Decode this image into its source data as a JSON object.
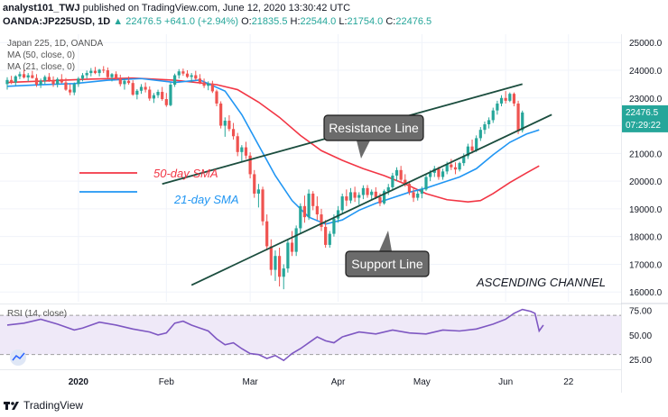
{
  "header": {
    "author": "analyst101_TWJ",
    "published": "published on TradingView.com, June 12, 2020 13:30:42 UTC",
    "symbol": "OANDA:JP225USD, 1D",
    "last": "22476.5",
    "change": "+641.0 (+2.94%)",
    "open_label": "O:",
    "open": "21835.5",
    "high_label": "H:",
    "high": "22544.0",
    "low_label": "L:",
    "low": "21754.0",
    "close_label": "C:",
    "close": "22476.5"
  },
  "legend": {
    "title": "Japan 225, 1D, OANDA",
    "ma1": "MA (50, close, 0)",
    "ma2": "MA (21, close, 0)"
  },
  "colors": {
    "up": "#26a69a",
    "down": "#ef5350",
    "sma50": "#f23645",
    "sma21": "#2196f3",
    "rsi": "#7e57c2",
    "rsi_band": "#e1d7f3",
    "channel": "#1b4d3e",
    "price_badge": "#26a69a"
  },
  "annotations": {
    "sma50_label": "50-day SMA",
    "sma21_label": "21-day SMA",
    "resistance": "Resistance Line",
    "support": "Support Line",
    "channel": "ASCENDING CHANNEL"
  },
  "price_badge": {
    "price": "22476.5",
    "countdown": "07:29:22"
  },
  "rsi_label": "RSI (14, close)",
  "brand": "TradingView",
  "chart_data": {
    "type": "candlestick",
    "price_axis": {
      "ticks": [
        16000,
        17000,
        18000,
        19000,
        20000,
        21000,
        22000,
        23000,
        24000,
        25000
      ],
      "labels": [
        "16000.0",
        "17000.0",
        "18000.0",
        "19000.0",
        "20000.0",
        "21000.0",
        "22000.0",
        "23000.0",
        "24000.0",
        "25000.0"
      ],
      "range": [
        15650,
        25300
      ]
    },
    "rsi_axis": {
      "ticks": [
        25,
        50,
        75
      ],
      "labels": [
        "25.00",
        "50.00",
        "75.00"
      ],
      "range": [
        15,
        82
      ],
      "band": [
        30,
        70
      ]
    },
    "time_axis": {
      "labels": [
        "2020",
        "Feb",
        "Mar",
        "Apr",
        "May",
        "Jun",
        "22"
      ],
      "label_index": [
        17,
        38,
        58,
        79,
        99,
        119,
        134
      ]
    },
    "candles": [
      [
        23500,
        23750,
        23300,
        23650
      ],
      [
        23650,
        23800,
        23500,
        23560
      ],
      [
        23560,
        23820,
        23450,
        23780
      ],
      [
        23780,
        23950,
        23680,
        23860
      ],
      [
        23860,
        24020,
        23700,
        23740
      ],
      [
        23740,
        23900,
        23600,
        23820
      ],
      [
        23820,
        23980,
        23700,
        23720
      ],
      [
        23720,
        23860,
        23400,
        23480
      ],
      [
        23480,
        23700,
        23360,
        23620
      ],
      [
        23620,
        23820,
        23500,
        23760
      ],
      [
        23760,
        23900,
        23580,
        23640
      ],
      [
        23640,
        23780,
        23400,
        23500
      ],
      [
        23500,
        23740,
        23380,
        23680
      ],
      [
        23680,
        23860,
        23520,
        23560
      ],
      [
        23560,
        23720,
        23260,
        23300
      ],
      [
        23300,
        23500,
        23100,
        23200
      ],
      [
        23200,
        23560,
        23100,
        23500
      ],
      [
        23500,
        23760,
        23400,
        23700
      ],
      [
        23700,
        23900,
        23600,
        23820
      ],
      [
        23820,
        23990,
        23700,
        23900
      ],
      [
        23900,
        24080,
        23780,
        23980
      ],
      [
        23980,
        24120,
        23860,
        23900
      ],
      [
        23900,
        24050,
        23780,
        24020
      ],
      [
        24020,
        24150,
        23900,
        24000
      ],
      [
        24000,
        24100,
        23700,
        23750
      ],
      [
        23750,
        23900,
        23600,
        23860
      ],
      [
        23860,
        23960,
        23640,
        23700
      ],
      [
        23700,
        23840,
        23420,
        23500
      ],
      [
        23500,
        23700,
        23300,
        23620
      ],
      [
        23620,
        23780,
        23480,
        23540
      ],
      [
        23540,
        23640,
        23080,
        23120
      ],
      [
        23120,
        23320,
        22950,
        23260
      ],
      [
        23260,
        23500,
        23150,
        23400
      ],
      [
        23400,
        23560,
        23200,
        23300
      ],
      [
        23300,
        23420,
        22900,
        22980
      ],
      [
        22980,
        23180,
        22820,
        23100
      ],
      [
        23100,
        23300,
        23000,
        23220
      ],
      [
        23220,
        23400,
        22900,
        22960
      ],
      [
        22960,
        23180,
        22680,
        22740
      ],
      [
        22740,
        23560,
        22700,
        23480
      ],
      [
        23480,
        23880,
        23400,
        23820
      ],
      [
        23820,
        24040,
        23700,
        23960
      ],
      [
        23960,
        24060,
        23800,
        23880
      ],
      [
        23880,
        24000,
        23720,
        23760
      ],
      [
        23760,
        23900,
        23560,
        23820
      ],
      [
        23820,
        23980,
        23640,
        23700
      ],
      [
        23700,
        23860,
        23500,
        23560
      ],
      [
        23560,
        23700,
        23360,
        23440
      ],
      [
        23440,
        23600,
        23280,
        23520
      ],
      [
        23520,
        23620,
        23180,
        23240
      ],
      [
        23240,
        23300,
        22700,
        22800
      ],
      [
        22800,
        22880,
        21900,
        22000
      ],
      [
        22000,
        22300,
        21600,
        22180
      ],
      [
        22180,
        22380,
        21800,
        21880
      ],
      [
        21880,
        22100,
        21500,
        21620
      ],
      [
        21620,
        21740,
        20900,
        21050
      ],
      [
        21050,
        21300,
        20700,
        21220
      ],
      [
        21220,
        21420,
        20800,
        20920
      ],
      [
        20920,
        21040,
        20100,
        20250
      ],
      [
        20250,
        20400,
        19400,
        19550
      ],
      [
        19550,
        19900,
        19050,
        19700
      ],
      [
        19700,
        19800,
        18400,
        18550
      ],
      [
        18550,
        18800,
        17500,
        17650
      ],
      [
        17650,
        17900,
        16600,
        16800
      ],
      [
        16800,
        17500,
        16400,
        17300
      ],
      [
        17300,
        17600,
        16200,
        16550
      ],
      [
        16550,
        17000,
        16100,
        16850
      ],
      [
        16850,
        17900,
        16700,
        17780
      ],
      [
        17780,
        18200,
        17300,
        17450
      ],
      [
        17450,
        18400,
        17300,
        18300
      ],
      [
        18300,
        19200,
        18100,
        19100
      ],
      [
        19100,
        19480,
        18500,
        18700
      ],
      [
        18700,
        19700,
        18600,
        19550
      ],
      [
        19550,
        19640,
        18950,
        19100
      ],
      [
        19100,
        19450,
        18600,
        18800
      ],
      [
        18800,
        19000,
        18200,
        18350
      ],
      [
        18350,
        18600,
        17600,
        17700
      ],
      [
        17700,
        18200,
        17600,
        18100
      ],
      [
        18100,
        18800,
        18000,
        18650
      ],
      [
        18650,
        19100,
        18500,
        18950
      ],
      [
        18950,
        19550,
        18850,
        19450
      ],
      [
        19450,
        19700,
        19100,
        19300
      ],
      [
        19300,
        19750,
        19200,
        19600
      ],
      [
        19600,
        19800,
        19250,
        19400
      ],
      [
        19400,
        19600,
        19150,
        19500
      ],
      [
        19500,
        19850,
        19350,
        19750
      ],
      [
        19750,
        19860,
        19400,
        19500
      ],
      [
        19500,
        19700,
        19300,
        19620
      ],
      [
        19620,
        19780,
        19350,
        19420
      ],
      [
        19420,
        19560,
        19100,
        19200
      ],
      [
        19200,
        19700,
        19150,
        19640
      ],
      [
        19640,
        19900,
        19500,
        19780
      ],
      [
        19780,
        20300,
        19700,
        20200
      ],
      [
        20200,
        20500,
        20000,
        20400
      ],
      [
        20400,
        20550,
        19950,
        20050
      ],
      [
        20050,
        20250,
        19800,
        19900
      ],
      [
        19900,
        20000,
        19500,
        19600
      ],
      [
        19600,
        19750,
        19250,
        19400
      ],
      [
        19400,
        19650,
        19300,
        19550
      ],
      [
        19550,
        19800,
        19380,
        19700
      ],
      [
        19700,
        20250,
        19650,
        20150
      ],
      [
        20150,
        20400,
        20000,
        20300
      ],
      [
        20300,
        20550,
        20150,
        20450
      ],
      [
        20450,
        20520,
        20050,
        20150
      ],
      [
        20150,
        20450,
        20050,
        20350
      ],
      [
        20350,
        20700,
        20250,
        20600
      ],
      [
        20600,
        20800,
        20400,
        20500
      ],
      [
        20500,
        20680,
        20250,
        20420
      ],
      [
        20420,
        20700,
        20350,
        20650
      ],
      [
        20650,
        21000,
        20550,
        20900
      ],
      [
        20900,
        21350,
        20800,
        21250
      ],
      [
        21250,
        21500,
        21000,
        21100
      ],
      [
        21100,
        21650,
        21050,
        21550
      ],
      [
        21550,
        21950,
        21450,
        21850
      ],
      [
        21850,
        22150,
        21700,
        22050
      ],
      [
        22050,
        22300,
        21900,
        22200
      ],
      [
        22200,
        22650,
        22100,
        22550
      ],
      [
        22550,
        22900,
        22400,
        22800
      ],
      [
        22800,
        23100,
        22700,
        23000
      ],
      [
        23000,
        23250,
        22800,
        22900
      ],
      [
        22900,
        23200,
        22850,
        23150
      ],
      [
        23150,
        23200,
        22700,
        22800
      ],
      [
        22800,
        22900,
        21700,
        21800
      ],
      [
        21835.5,
        22544,
        21754,
        22476.5
      ]
    ],
    "sma50": [
      [
        0,
        23560
      ],
      [
        10,
        23620
      ],
      [
        20,
        23680
      ],
      [
        30,
        23720
      ],
      [
        40,
        23640
      ],
      [
        50,
        23480
      ],
      [
        55,
        23300
      ],
      [
        60,
        22850
      ],
      [
        65,
        22300
      ],
      [
        70,
        21650
      ],
      [
        75,
        21100
      ],
      [
        80,
        20750
      ],
      [
        85,
        20450
      ],
      [
        90,
        20200
      ],
      [
        95,
        19900
      ],
      [
        100,
        19550
      ],
      [
        105,
        19330
      ],
      [
        110,
        19250
      ],
      [
        113,
        19300
      ],
      [
        116,
        19550
      ],
      [
        120,
        19950
      ],
      [
        124,
        20300
      ],
      [
        127,
        20550
      ]
    ],
    "sma21": [
      [
        0,
        23420
      ],
      [
        8,
        23480
      ],
      [
        16,
        23520
      ],
      [
        24,
        23640
      ],
      [
        32,
        23700
      ],
      [
        40,
        23560
      ],
      [
        46,
        23650
      ],
      [
        52,
        23250
      ],
      [
        56,
        22400
      ],
      [
        60,
        21300
      ],
      [
        64,
        20200
      ],
      [
        68,
        19300
      ],
      [
        72,
        18700
      ],
      [
        76,
        18450
      ],
      [
        80,
        18600
      ],
      [
        84,
        18950
      ],
      [
        88,
        19200
      ],
      [
        92,
        19400
      ],
      [
        96,
        19600
      ],
      [
        100,
        19750
      ],
      [
        104,
        19950
      ],
      [
        108,
        20150
      ],
      [
        112,
        20450
      ],
      [
        116,
        20950
      ],
      [
        120,
        21400
      ],
      [
        124,
        21700
      ],
      [
        126,
        21800
      ],
      [
        127,
        21850
      ]
    ],
    "rsi": [
      [
        0,
        60
      ],
      [
        4,
        62
      ],
      [
        8,
        66
      ],
      [
        12,
        61
      ],
      [
        16,
        55
      ],
      [
        18,
        57
      ],
      [
        22,
        63
      ],
      [
        26,
        60
      ],
      [
        30,
        56
      ],
      [
        34,
        53
      ],
      [
        36,
        50
      ],
      [
        38,
        52
      ],
      [
        40,
        62
      ],
      [
        42,
        64
      ],
      [
        44,
        60
      ],
      [
        46,
        57
      ],
      [
        48,
        54
      ],
      [
        50,
        46
      ],
      [
        52,
        40
      ],
      [
        54,
        42
      ],
      [
        56,
        36
      ],
      [
        58,
        31
      ],
      [
        60,
        30
      ],
      [
        62,
        26
      ],
      [
        64,
        29
      ],
      [
        66,
        24
      ],
      [
        68,
        31
      ],
      [
        70,
        36
      ],
      [
        72,
        42
      ],
      [
        74,
        48
      ],
      [
        76,
        44
      ],
      [
        78,
        42
      ],
      [
        80,
        48
      ],
      [
        84,
        53
      ],
      [
        88,
        51
      ],
      [
        92,
        55
      ],
      [
        96,
        52
      ],
      [
        100,
        51
      ],
      [
        104,
        55
      ],
      [
        108,
        54
      ],
      [
        112,
        56
      ],
      [
        116,
        61
      ],
      [
        119,
        66
      ],
      [
        121,
        72
      ],
      [
        123,
        76
      ],
      [
        125,
        74
      ],
      [
        126,
        72
      ],
      [
        127,
        54
      ],
      [
        128,
        60
      ]
    ],
    "channel_resistance": [
      [
        37,
        19900
      ],
      [
        123,
        23500
      ]
    ],
    "channel_support": [
      [
        44,
        16250
      ],
      [
        130,
        22400
      ]
    ]
  }
}
